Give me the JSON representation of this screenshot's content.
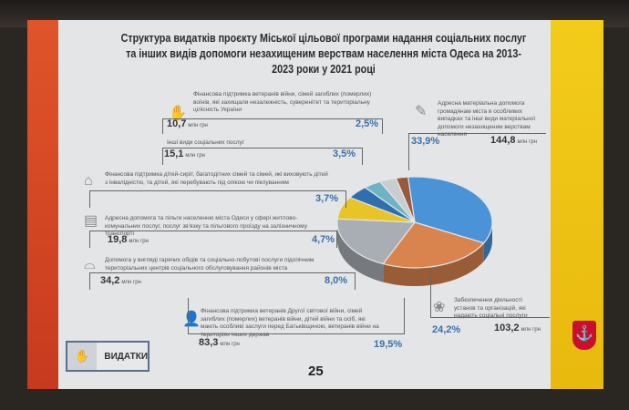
{
  "title": "Структура видатків проєкту Міської цільової програми надання соціальних послуг та інших видів допомоги незахищеним верствам населення міста Одеса на 2013-2023 роки у 2021 році",
  "unit": "млн грн",
  "button": {
    "label": "ВИДАТКИ",
    "icon": "hand-coins-icon"
  },
  "page_number": "25",
  "chart_data": {
    "type": "pie",
    "title": "Структура видатків проєкту Міської цільової програми надання соціальних послуг та інших видів допомоги незахищеним верствам населення міста Одеса на 2013-2023 роки у 2021 році",
    "unit": "млн грн",
    "series": [
      {
        "label": "Адресна матеріальна допомога громадянам міста в особливих випадках та інші види матеріальної допомоги незахищеним верствам населення",
        "value": 144.8,
        "value_text": "144,8",
        "percent": "33,9%",
        "color": "#4a93d6"
      },
      {
        "label": "Забезпечення діяльності установ та організацій, які надають соціальні послуги",
        "value": 103.2,
        "value_text": "103,2",
        "percent": "24,2%",
        "color": "#d9844f"
      },
      {
        "label": "Фінансова підтримка ветеранів Другої світової війни, сімей загиблих (померлих) ветеранів війни, дітей війни та осіб, які мають особливі заслуги перед Батьківщиною, ветеранів війни на територіях інших держав",
        "value": 83.3,
        "value_text": "83,3",
        "percent": "19,5%",
        "color": "#a9aeb4"
      },
      {
        "label": "Допомога у вигляді гарячих обідів та соціально-побутові послуги підопічним територіальних центрів соціального обслуговування районів міста",
        "value": 34.2,
        "value_text": "34,2",
        "percent": "8,0%",
        "color": "#e8c428"
      },
      {
        "label": "Адресна допомога та пільги населенню міста Одеси у сфері житлово-комунальних послуг, послуг зв'язку та пільгового проїзду на залізничному транспорті",
        "value": 19.8,
        "value_text": "19,8",
        "percent": "4,7%",
        "color": "#2f6fae"
      },
      {
        "label": "Фінансова підтримка дітей-сиріт, багатодітних сімей та сімей, які виховують дітей з інвалідністю, та дітей, які перебувають під опікою чи піклуванням",
        "value": null,
        "value_text": "",
        "percent": "3,7%",
        "color": "#6fb3c6"
      },
      {
        "label": "Інші види соціальних послуг",
        "value": 15.1,
        "value_text": "15,1",
        "percent": "3,5%",
        "color": "#c9ccd0"
      },
      {
        "label": "Фінансова підтримка ветеранів війни, сімей загиблих (померлих) воїнів, які захищали незалежність, суверенітет та територіальну цілісність України",
        "value": 10.7,
        "value_text": "10,7",
        "percent": "2,5%",
        "color": "#9a5a3a"
      }
    ]
  }
}
